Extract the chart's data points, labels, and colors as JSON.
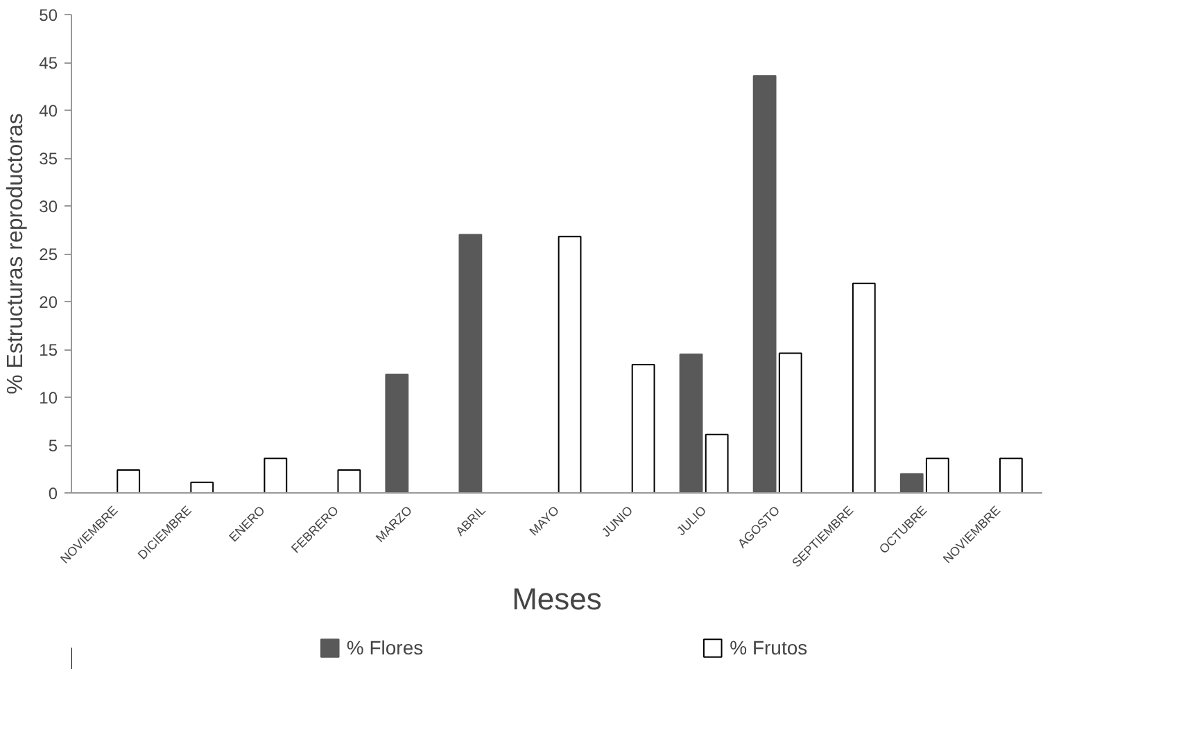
{
  "chart_data": {
    "type": "bar",
    "xlabel": "Meses",
    "ylabel": "% Estructuras reproductoras",
    "categories": [
      "NOVIEMBRE",
      "DICIEMBRE",
      "ENERO",
      "FEBRERO",
      "MARZO",
      "ABRIL",
      "MAYO",
      "JUNIO",
      "JULIO",
      "AGOSTO",
      "SEPTIEMBRE",
      "OCTUBRE",
      "NOVIEMBRE"
    ],
    "series": [
      {
        "name": "% Flores",
        "color": "#595959",
        "values": [
          null,
          null,
          null,
          null,
          12.4,
          27,
          null,
          null,
          14.5,
          43.6,
          null,
          2,
          null
        ]
      },
      {
        "name": "% Frutos",
        "color": "#ffffff",
        "values": [
          2.4,
          1.1,
          3.6,
          2.4,
          null,
          null,
          26.8,
          13.4,
          6.1,
          14.6,
          21.9,
          3.6,
          3.6
        ]
      }
    ],
    "ylim": [
      0,
      50
    ],
    "yticks": [
      0,
      5,
      10,
      15,
      20,
      25,
      30,
      35,
      40,
      45,
      50
    ],
    "grid": false,
    "legend": "bottom"
  }
}
